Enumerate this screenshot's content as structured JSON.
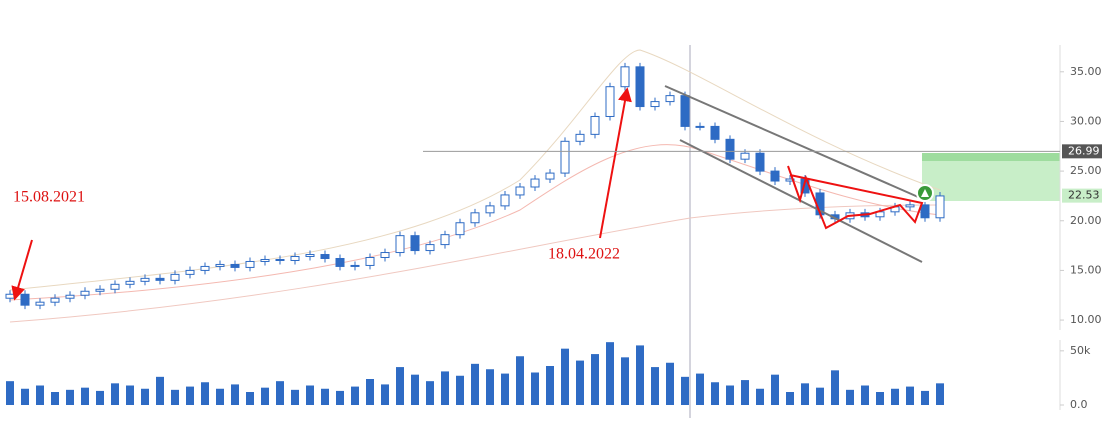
{
  "chart_data": {
    "type": "candlestick",
    "ohlc": [
      [
        12.2,
        13.0,
        11.8,
        12.6
      ],
      [
        12.6,
        13.0,
        11.1,
        11.5
      ],
      [
        11.5,
        12.2,
        11.1,
        11.8
      ],
      [
        11.8,
        12.6,
        11.4,
        12.2
      ],
      [
        12.2,
        12.9,
        11.8,
        12.5
      ],
      [
        12.5,
        13.3,
        12.1,
        12.9
      ],
      [
        12.9,
        13.5,
        12.5,
        13.1
      ],
      [
        13.1,
        14.0,
        12.7,
        13.6
      ],
      [
        13.6,
        14.3,
        13.2,
        13.9
      ],
      [
        13.9,
        14.6,
        13.5,
        14.2
      ],
      [
        14.2,
        14.6,
        13.6,
        14.0
      ],
      [
        14.0,
        15.0,
        13.6,
        14.6
      ],
      [
        14.6,
        15.4,
        14.2,
        15.0
      ],
      [
        15.0,
        15.8,
        14.6,
        15.4
      ],
      [
        15.4,
        16.0,
        15.0,
        15.6
      ],
      [
        15.6,
        16.0,
        14.9,
        15.3
      ],
      [
        15.3,
        16.3,
        14.9,
        15.9
      ],
      [
        15.9,
        16.5,
        15.5,
        16.1
      ],
      [
        16.1,
        16.5,
        15.6,
        16.0
      ],
      [
        16.0,
        16.8,
        15.6,
        16.4
      ],
      [
        16.4,
        17.0,
        16.0,
        16.6
      ],
      [
        16.6,
        17.0,
        15.8,
        16.2
      ],
      [
        16.2,
        16.6,
        15.0,
        15.4
      ],
      [
        15.4,
        15.9,
        15.0,
        15.5
      ],
      [
        15.5,
        16.7,
        15.1,
        16.3
      ],
      [
        16.3,
        17.2,
        15.9,
        16.8
      ],
      [
        16.8,
        18.9,
        16.4,
        18.5
      ],
      [
        18.5,
        18.9,
        16.6,
        17.0
      ],
      [
        17.0,
        18.0,
        16.6,
        17.6
      ],
      [
        17.6,
        19.0,
        17.2,
        18.6
      ],
      [
        18.6,
        20.2,
        18.2,
        19.8
      ],
      [
        19.8,
        21.2,
        19.4,
        20.8
      ],
      [
        20.8,
        21.9,
        20.4,
        21.5
      ],
      [
        21.5,
        23.0,
        21.1,
        22.6
      ],
      [
        22.6,
        23.8,
        22.2,
        23.4
      ],
      [
        23.4,
        24.6,
        23.0,
        24.2
      ],
      [
        24.2,
        25.2,
        23.8,
        24.8
      ],
      [
        24.8,
        28.4,
        24.4,
        28.0
      ],
      [
        28.0,
        29.1,
        27.6,
        28.7
      ],
      [
        28.7,
        30.9,
        28.3,
        30.5
      ],
      [
        30.5,
        33.9,
        30.1,
        33.5
      ],
      [
        33.5,
        35.9,
        33.1,
        35.5
      ],
      [
        35.5,
        35.9,
        31.1,
        31.5
      ],
      [
        31.5,
        32.4,
        31.1,
        32.0
      ],
      [
        32.0,
        33.0,
        31.6,
        32.6
      ],
      [
        32.6,
        33.0,
        29.1,
        29.5
      ],
      [
        29.5,
        29.9,
        29.1,
        29.5
      ],
      [
        29.5,
        29.9,
        27.8,
        28.2
      ],
      [
        28.2,
        28.6,
        25.8,
        26.2
      ],
      [
        26.2,
        27.2,
        25.8,
        26.8
      ],
      [
        26.8,
        27.2,
        24.6,
        25.0
      ],
      [
        25.0,
        25.4,
        23.6,
        24.0
      ],
      [
        24.0,
        24.6,
        23.6,
        24.2
      ],
      [
        24.2,
        24.6,
        22.4,
        22.8
      ],
      [
        22.8,
        23.2,
        20.2,
        20.6
      ],
      [
        20.6,
        21.0,
        19.8,
        20.2
      ],
      [
        20.2,
        21.2,
        19.8,
        20.8
      ],
      [
        20.8,
        21.2,
        20.0,
        20.4
      ],
      [
        20.4,
        21.3,
        20.0,
        20.9
      ],
      [
        20.9,
        21.8,
        20.5,
        21.4
      ],
      [
        21.4,
        22.0,
        21.0,
        21.6
      ],
      [
        21.6,
        22.0,
        19.9,
        20.3
      ],
      [
        20.3,
        22.9,
        19.9,
        22.5
      ]
    ],
    "volume": [
      22000,
      15000,
      18000,
      12000,
      14000,
      16000,
      13000,
      20000,
      18000,
      15000,
      26000,
      14000,
      17000,
      21000,
      15000,
      19000,
      12000,
      16000,
      22000,
      14000,
      18000,
      15000,
      13000,
      17000,
      24000,
      19000,
      35000,
      28000,
      22000,
      31000,
      27000,
      38000,
      33000,
      29000,
      45000,
      30000,
      36000,
      52000,
      41000,
      47000,
      58000,
      44000,
      55000,
      35000,
      39000,
      26000,
      29000,
      21000,
      18000,
      23000,
      15000,
      28000,
      12000,
      20000,
      16000,
      32000,
      14000,
      18000,
      12000,
      15000,
      17000,
      13000,
      20000
    ],
    "color": "#2e6bc4",
    "ylim": [
      9,
      38
    ],
    "yticks": [
      {
        "value": 35,
        "label": "35.00"
      },
      {
        "value": 30,
        "label": "30.00"
      },
      {
        "value": 25,
        "label": "25.00"
      },
      {
        "value": 20,
        "label": "20.00"
      },
      {
        "value": 15,
        "label": "15.00"
      },
      {
        "value": 10,
        "label": "10.00"
      }
    ],
    "volume_ylim": [
      0,
      60000
    ],
    "volume_yticks": [
      {
        "value": 50000,
        "label": "50k"
      },
      {
        "value": 0,
        "label": "0.0"
      }
    ],
    "level": {
      "value": 26.99,
      "label": "26.99"
    },
    "last_price": {
      "value": 22.53,
      "label": "22.53"
    },
    "annotations": [
      "15.08.2021",
      "18.04.2022"
    ]
  }
}
